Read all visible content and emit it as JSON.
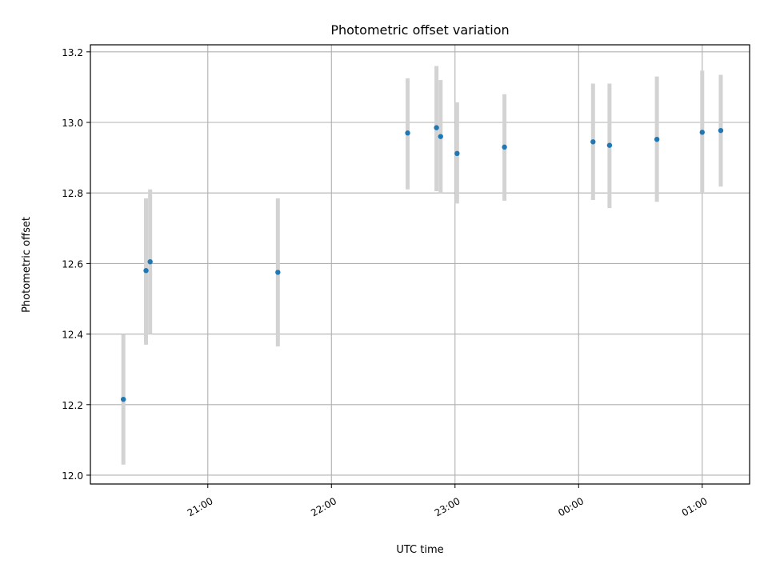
{
  "chart_data": {
    "type": "scatter",
    "title": "Photometric offset variation",
    "xlabel": "UTC time",
    "ylabel": "Photometric offset",
    "x_tick_labels": [
      "21:00",
      "22:00",
      "23:00",
      "00:00",
      "01:00"
    ],
    "x_ticks": [
      "21:00",
      "22:00",
      "23:00",
      "24:00",
      "25:00"
    ],
    "y_ticks": [
      "12.0",
      "12.2",
      "12.4",
      "12.6",
      "12.8",
      "13.0",
      "13.2"
    ],
    "xlim": [
      "20:03",
      "25:23"
    ],
    "ylim": [
      11.975,
      13.22
    ],
    "grid": true,
    "colors": {
      "points": "#1f77b4",
      "error_bars": "#d3d3d3",
      "grid": "#b0b0b0"
    },
    "points": [
      {
        "x": "20:19",
        "y": 12.215,
        "err_low": 12.03,
        "err_high": 12.4
      },
      {
        "x": "20:30",
        "y": 12.58,
        "err_low": 12.37,
        "err_high": 12.785
      },
      {
        "x": "20:32",
        "y": 12.605,
        "err_low": 12.4,
        "err_high": 12.81
      },
      {
        "x": "21:34",
        "y": 12.575,
        "err_low": 12.365,
        "err_high": 12.785
      },
      {
        "x": "22:37",
        "y": 12.97,
        "err_low": 12.81,
        "err_high": 13.125
      },
      {
        "x": "22:51",
        "y": 12.985,
        "err_low": 12.805,
        "err_high": 13.16
      },
      {
        "x": "22:53",
        "y": 12.96,
        "err_low": 12.8,
        "err_high": 13.12
      },
      {
        "x": "23:01",
        "y": 12.912,
        "err_low": 12.77,
        "err_high": 13.057
      },
      {
        "x": "23:24",
        "y": 12.93,
        "err_low": 12.778,
        "err_high": 13.08
      },
      {
        "x": "24:07",
        "y": 12.945,
        "err_low": 12.78,
        "err_high": 13.11
      },
      {
        "x": "24:15",
        "y": 12.935,
        "err_low": 12.757,
        "err_high": 13.11
      },
      {
        "x": "24:38",
        "y": 12.952,
        "err_low": 12.775,
        "err_high": 13.13
      },
      {
        "x": "25:00",
        "y": 12.972,
        "err_low": 12.8,
        "err_high": 13.147
      },
      {
        "x": "25:09",
        "y": 12.977,
        "err_low": 12.818,
        "err_high": 13.135
      }
    ]
  }
}
